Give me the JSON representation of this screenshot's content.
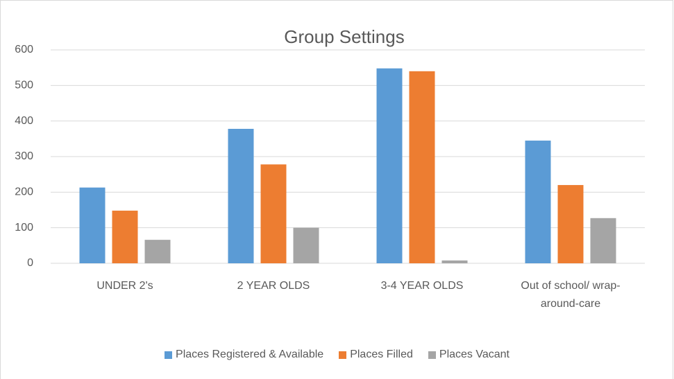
{
  "chart_data": {
    "type": "bar",
    "title": "Group Settings",
    "categories": [
      "UNDER 2's",
      "2 YEAR OLDS",
      "3-4 YEAR OLDS",
      "Out of school/ wrap-around-care"
    ],
    "series": [
      {
        "name": "Places Registered & Available",
        "color": "#5b9bd5",
        "values": [
          213,
          378,
          548,
          345
        ]
      },
      {
        "name": "Places Filled",
        "color": "#ed7d31",
        "values": [
          148,
          278,
          540,
          220
        ]
      },
      {
        "name": "Places Vacant",
        "color": "#a5a5a5",
        "values": [
          66,
          100,
          8,
          127
        ]
      }
    ],
    "ylim": [
      0,
      600
    ],
    "yticks": [
      0,
      100,
      200,
      300,
      400,
      500,
      600
    ],
    "grid": true,
    "legend": "bottom"
  }
}
